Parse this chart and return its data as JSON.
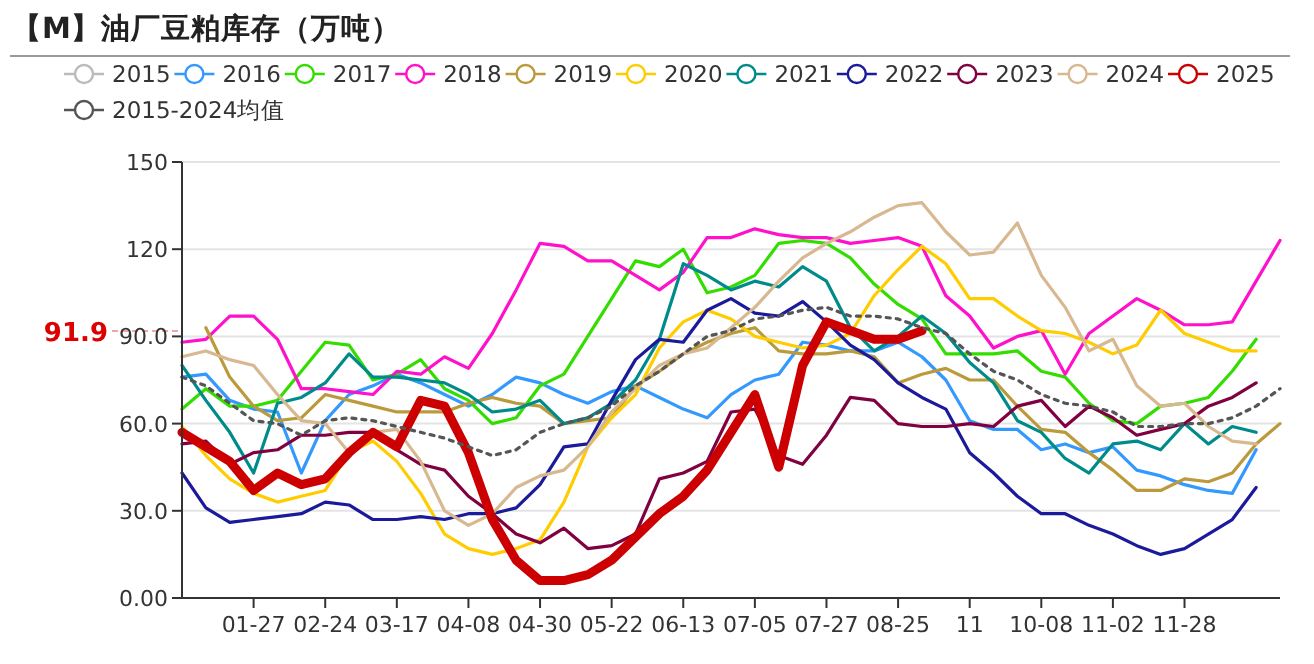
{
  "chart_data": {
    "type": "line",
    "title": "【M】油厂豆粕库存（万吨）",
    "categories": [
      null,
      null,
      null,
      "01-27",
      null,
      null,
      "02-24",
      null,
      null,
      "03-17",
      null,
      null,
      "04-08",
      null,
      null,
      "04-30",
      null,
      null,
      "05-22",
      null,
      null,
      "06-13",
      null,
      null,
      "07-05",
      null,
      null,
      "07-27",
      null,
      null,
      "08-25",
      null,
      null,
      "11",
      null,
      null,
      "10-08",
      null,
      null,
      "11-02",
      null,
      null,
      "11-28",
      null,
      null,
      null,
      null
    ],
    "ylim": [
      0,
      150
    ],
    "yticks": [
      {
        "value": 0,
        "label": "0.00"
      },
      {
        "value": 30,
        "label": "30.0"
      },
      {
        "value": 60,
        "label": "60.0"
      },
      {
        "value": 90,
        "label": "90.0"
      },
      120,
      150
    ],
    "grid": "y",
    "legend": "top",
    "line_style": "solid",
    "ref_lines": [
      {
        "axis": "y",
        "value": 91.9,
        "label": "91.9",
        "color": "#dd0000"
      }
    ],
    "series": [
      {
        "name": "2015",
        "color": "#bbbbbb",
        "values": [
          null,
          null,
          null,
          null,
          null,
          null,
          null,
          null,
          null,
          null,
          null,
          null,
          null,
          null,
          null,
          null,
          null,
          null,
          null,
          null,
          null,
          null,
          null,
          null,
          null,
          null,
          null,
          null,
          null,
          null,
          null,
          null,
          null,
          null,
          null,
          null,
          null,
          null,
          null,
          null,
          null,
          null,
          null,
          null,
          null,
          null,
          null
        ]
      },
      {
        "name": "2016",
        "color": "#3399ff",
        "values": [
          76,
          77,
          68,
          65,
          64,
          43,
          61,
          70,
          73,
          77,
          74,
          70,
          66,
          70,
          76,
          74,
          70,
          67,
          71,
          73,
          69,
          65,
          62,
          70,
          75,
          77,
          88,
          87,
          85,
          85,
          88,
          83,
          75,
          61,
          58,
          58,
          51,
          53,
          50,
          52,
          44,
          42,
          39,
          37,
          36,
          51,
          null
        ]
      },
      {
        "name": "2017",
        "color": "#33dd00",
        "values": [
          65,
          72,
          66,
          66,
          68,
          78,
          88,
          87,
          75,
          77,
          82,
          72,
          68,
          60,
          62,
          73,
          77,
          90,
          103,
          116,
          114,
          120,
          105,
          107,
          111,
          122,
          123,
          122,
          117,
          108,
          101,
          96,
          84,
          84,
          84,
          85,
          78,
          76,
          67,
          61,
          60,
          66,
          67,
          69,
          78,
          89,
          null
        ]
      },
      {
        "name": "2018",
        "color": "#ff11cc",
        "values": [
          88,
          89,
          97,
          97,
          89,
          72,
          72,
          71,
          70,
          78,
          77,
          83,
          79,
          91,
          106,
          122,
          121,
          116,
          116,
          111,
          106,
          112,
          124,
          124,
          127,
          125,
          124,
          124,
          122,
          123,
          124,
          121,
          104,
          97,
          86,
          90,
          92,
          77,
          91,
          97,
          103,
          99,
          94,
          94,
          95,
          109,
          123
        ]
      },
      {
        "name": "2019",
        "color": "#bb9a3c",
        "values": [
          null,
          93,
          76,
          66,
          61,
          62,
          70,
          68,
          66,
          64,
          64,
          64,
          67,
          69,
          67,
          66,
          60,
          61,
          62,
          73,
          78,
          84,
          88,
          91,
          93,
          85,
          84,
          84,
          85,
          83,
          74,
          77,
          79,
          75,
          75,
          66,
          58,
          57,
          50,
          44,
          37,
          37,
          41,
          40,
          43,
          53,
          60
        ]
      },
      {
        "name": "2020",
        "color": "#ffcc00",
        "values": [
          59,
          49,
          41,
          36,
          33,
          35,
          37,
          50,
          54,
          47,
          36,
          22,
          17,
          15,
          17,
          20,
          33,
          52,
          62,
          70,
          86,
          95,
          99,
          96,
          90,
          88,
          86,
          87,
          91,
          104,
          113,
          121,
          115,
          103,
          103,
          97,
          92,
          91,
          88,
          84,
          87,
          99,
          91,
          88,
          85,
          85,
          null
        ]
      },
      {
        "name": "2021",
        "color": "#008b8b",
        "values": [
          80,
          68,
          57,
          43,
          67,
          69,
          74,
          84,
          76,
          76,
          75,
          74,
          70,
          64,
          65,
          68,
          60,
          62,
          67,
          75,
          89,
          115,
          111,
          106,
          109,
          107,
          114,
          109,
          93,
          85,
          90,
          97,
          91,
          81,
          74,
          61,
          57,
          48,
          43,
          53,
          54,
          51,
          60,
          53,
          59,
          57,
          null
        ]
      },
      {
        "name": "2022",
        "color": "#1a1a9a",
        "values": [
          43,
          31,
          26,
          27,
          28,
          29,
          33,
          32,
          27,
          27,
          28,
          27,
          29,
          29,
          31,
          39,
          52,
          53,
          68,
          82,
          89,
          88,
          99,
          103,
          98,
          97,
          102,
          95,
          87,
          82,
          74,
          69,
          65,
          50,
          43,
          35,
          29,
          29,
          25,
          22,
          18,
          15,
          17,
          22,
          27,
          38,
          null
        ]
      },
      {
        "name": "2023",
        "color": "#800040",
        "values": [
          53,
          54,
          46,
          50,
          51,
          56,
          56,
          57,
          57,
          51,
          46,
          44,
          35,
          29,
          22,
          19,
          24,
          17,
          18,
          22,
          41,
          43,
          47,
          64,
          65,
          49,
          46,
          56,
          69,
          68,
          60,
          59,
          59,
          60,
          59,
          66,
          68,
          59,
          66,
          62,
          56,
          58,
          60,
          66,
          69,
          74,
          null
        ]
      },
      {
        "name": "2024",
        "color": "#d8b890",
        "values": [
          83,
          85,
          82,
          80,
          70,
          61,
          60,
          50,
          57,
          58,
          47,
          30,
          25,
          29,
          38,
          42,
          44,
          52,
          64,
          72,
          80,
          84,
          86,
          93,
          100,
          109,
          117,
          122,
          126,
          131,
          135,
          136,
          126,
          118,
          119,
          129,
          111,
          100,
          85,
          89,
          73,
          66,
          67,
          59,
          54,
          53,
          null
        ]
      },
      {
        "name": "2025",
        "color": "#cc0000",
        "values": [
          57,
          52,
          47,
          37,
          43,
          39,
          41,
          50,
          57,
          52,
          68,
          66,
          50,
          27,
          13,
          6,
          6,
          8,
          13,
          21,
          29,
          35,
          44,
          57,
          70,
          45,
          80,
          95,
          92,
          89,
          89,
          91.9,
          null,
          null,
          null,
          null,
          null,
          null,
          null,
          null,
          null,
          null,
          null,
          null,
          null,
          null,
          null
        ]
      },
      {
        "name": "2015-2024均值",
        "color": "#555555",
        "line_style": "dotted",
        "values": [
          76,
          73,
          67,
          61,
          60,
          56,
          61,
          62,
          61,
          59,
          57,
          55,
          52,
          49,
          51,
          57,
          60,
          62,
          66,
          73,
          78,
          84,
          90,
          92,
          96,
          97,
          99,
          100,
          97,
          97,
          96,
          93,
          91,
          84,
          78,
          75,
          70,
          67,
          66,
          64,
          59,
          59,
          60,
          60,
          62,
          66,
          72
        ]
      }
    ]
  }
}
